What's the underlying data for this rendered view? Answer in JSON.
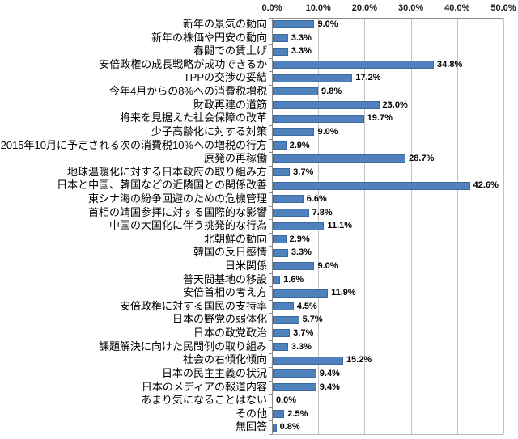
{
  "chart_data": {
    "type": "bar",
    "orientation": "horizontal",
    "title": "",
    "xlabel": "",
    "ylabel": "",
    "xlim": [
      0,
      50
    ],
    "grid": true,
    "legend": false,
    "x_axis_ticks": [
      "0.0%",
      "10.0%",
      "20.0%",
      "30.0%",
      "40.0%",
      "50.0%"
    ],
    "categories": [
      "新年の景気の動向",
      "新年の株価や円安の動向",
      "春闘での賃上げ",
      "安倍政権の成長戦略が成功できるか",
      "TPPの交渉の妥結",
      "今年4月からの8%への消費税増税",
      "財政再建の道筋",
      "将来を見据えた社会保障の改革",
      "少子高齢化に対する対策",
      "2015年10月に予定される次の消費税10%への増税の行方",
      "原発の再稼働",
      "地球温暖化に対する日本政府の取り組み方",
      "日本と中国、韓国などの近隣国との関係改善",
      "東シナ海の紛争回避のための危機管理",
      "首相の靖国参拝に対する国際的な影響",
      "中国の大国化に伴う挑発的な行為",
      "北朝鮮の動向",
      "韓国の反日感情",
      "日米関係",
      "普天間基地の移設",
      "安倍首相の考え方",
      "安倍政権に対する国民の支持率",
      "日本の野党の弱体化",
      "日本の政党政治",
      "課題解決に向けた民間側の取り組み",
      "社会の右傾化傾向",
      "日本の民主主義の状況",
      "日本のメディアの報道内容",
      "あまり気になることはない",
      "その他",
      "無回答"
    ],
    "values": [
      9.0,
      3.3,
      3.3,
      34.8,
      17.2,
      9.8,
      23.0,
      19.7,
      9.0,
      2.9,
      28.7,
      3.7,
      42.6,
      6.6,
      7.8,
      11.1,
      2.9,
      3.3,
      9.0,
      1.6,
      11.9,
      4.5,
      5.7,
      3.7,
      3.3,
      15.2,
      9.4,
      9.4,
      0.0,
      2.5,
      0.8
    ],
    "colors": {
      "bar_fill": "#4F81BD",
      "bar_border": "#3E699E",
      "gridline": "#C3C3C3",
      "axis_line": "#8C8C8C",
      "text": "#000000"
    }
  }
}
